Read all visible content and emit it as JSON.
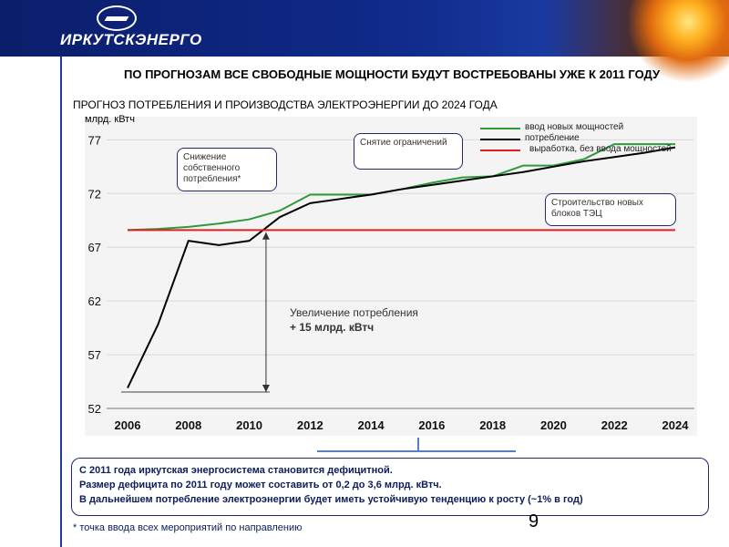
{
  "brand": {
    "name": "ИРКУТСКЭНЕРГО"
  },
  "title": "ПО ПРОГНОЗАМ ВСЕ СВОБОДНЫЕ МОЩНОСТИ БУДУТ ВОСТРЕБОВАНЫ УЖЕ К 2011 ГОДУ",
  "chart_data": {
    "type": "line",
    "title": "ПРОГНОЗ ПОТРЕБЛЕНИЯ И ПРОИЗВОДСТВА ЭЛЕКТРОЭНЕРГИИ ДО 2024 ГОДА",
    "ylabel": "млрд. кВтч",
    "xlabel": "",
    "ylim": [
      52,
      80
    ],
    "xlim": [
      2006,
      2024
    ],
    "yticks": [
      52,
      57,
      62,
      67,
      72,
      77
    ],
    "xticks": [
      2006,
      2008,
      2010,
      2012,
      2014,
      2016,
      2018,
      2020,
      2022,
      2024
    ],
    "grid": true,
    "series": [
      {
        "name": "ввод новых мощностей",
        "color": "#2e9b3a",
        "x": [
          2006,
          2007,
          2008,
          2009,
          2010,
          2011,
          2012,
          2013,
          2014,
          2015,
          2016,
          2017,
          2018,
          2019,
          2020,
          2021,
          2022,
          2023,
          2024
        ],
        "values": [
          68.6,
          68.7,
          68.9,
          69.2,
          69.6,
          70.4,
          71.9,
          71.9,
          71.9,
          72.4,
          73.0,
          73.5,
          73.6,
          74.6,
          74.6,
          75.2,
          76.6,
          76.6,
          76.6
        ]
      },
      {
        "name": "потребление",
        "color": "#000000",
        "x": [
          2006,
          2007,
          2008,
          2009,
          2010,
          2011,
          2012,
          2013,
          2014,
          2015,
          2016,
          2017,
          2018,
          2019,
          2020,
          2021,
          2022,
          2023,
          2024
        ],
        "values": [
          53.9,
          59.8,
          67.6,
          67.2,
          67.6,
          69.8,
          71.1,
          71.5,
          71.9,
          72.4,
          72.8,
          73.2,
          73.6,
          74.0,
          74.5,
          75.0,
          75.4,
          75.8,
          76.3
        ]
      },
      {
        "name": "выработка, без ввода мощностей",
        "color": "#e02020",
        "x": [
          2006,
          2024
        ],
        "values": [
          68.6,
          68.6
        ]
      }
    ],
    "annotations": [
      {
        "text": "Снижение собственного потребления*"
      },
      {
        "text": "Снятие ограничений"
      },
      {
        "text": "Строительство новых блоков ТЭЦ"
      },
      {
        "text": "Увеличение потребления",
        "value_text": "+ 15 млрд. кВтч"
      }
    ]
  },
  "summary": {
    "lines": [
      "С 2011 года иркутская энергосистема становится дефицитной.",
      "Размер дефицита по 2011 году может составить от 0,2 до 3,6 млрд. кВтч.",
      "В дальнейшем потребление электроэнергии будет иметь устойчивую тенденцию к росту (~1% в год)"
    ]
  },
  "footnote": "* точка ввода всех мероприятий по направлению",
  "page_number": "9"
}
